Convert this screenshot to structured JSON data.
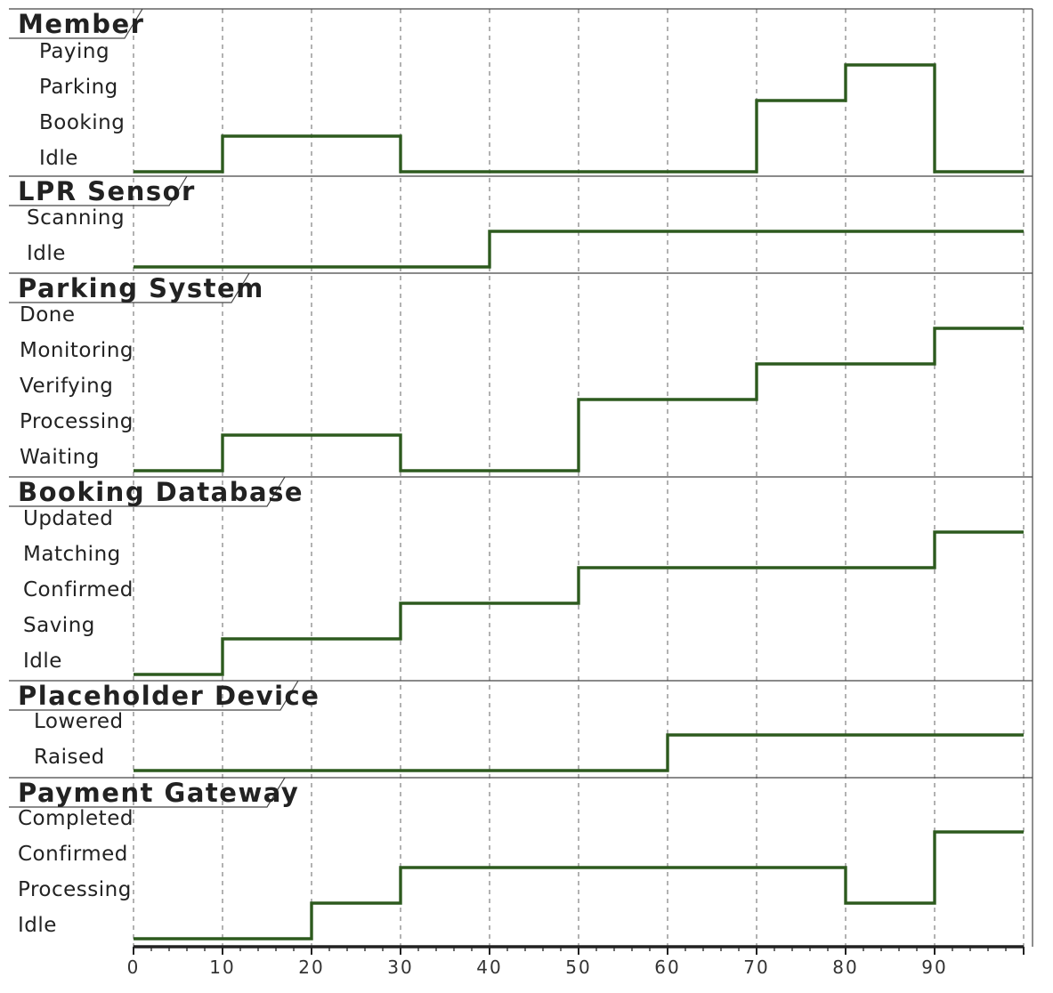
{
  "chart_data": {
    "type": "timing",
    "x_range": [
      0,
      100
    ],
    "x_ticks": [
      0,
      10,
      20,
      30,
      40,
      50,
      60,
      70,
      80,
      90
    ],
    "grid_x": [
      0,
      10,
      20,
      30,
      40,
      50,
      60,
      70,
      80,
      90,
      100
    ],
    "signal_color": "#2d5a1e",
    "lanes": [
      {
        "title": "Member",
        "states": [
          "Paying",
          "Parking",
          "Booking",
          "Idle"
        ],
        "transitions": [
          {
            "t": 0,
            "state": "Idle"
          },
          {
            "t": 10,
            "state": "Booking"
          },
          {
            "t": 30,
            "state": "Idle"
          },
          {
            "t": 70,
            "state": "Parking"
          },
          {
            "t": 80,
            "state": "Paying"
          },
          {
            "t": 90,
            "state": "Idle"
          }
        ]
      },
      {
        "title": "LPR Sensor",
        "states": [
          "Scanning",
          "Idle"
        ],
        "transitions": [
          {
            "t": 0,
            "state": "Idle"
          },
          {
            "t": 40,
            "state": "Scanning"
          }
        ]
      },
      {
        "title": "Parking System",
        "states": [
          "Done",
          "Monitoring",
          "Verifying",
          "Processing",
          "Waiting"
        ],
        "transitions": [
          {
            "t": 0,
            "state": "Waiting"
          },
          {
            "t": 10,
            "state": "Processing"
          },
          {
            "t": 30,
            "state": "Waiting"
          },
          {
            "t": 50,
            "state": "Verifying"
          },
          {
            "t": 70,
            "state": "Monitoring"
          },
          {
            "t": 90,
            "state": "Done"
          }
        ]
      },
      {
        "title": "Booking Database",
        "states": [
          "Updated",
          "Matching",
          "Confirmed",
          "Saving",
          "Idle"
        ],
        "transitions": [
          {
            "t": 0,
            "state": "Idle"
          },
          {
            "t": 10,
            "state": "Saving"
          },
          {
            "t": 30,
            "state": "Confirmed"
          },
          {
            "t": 50,
            "state": "Matching"
          },
          {
            "t": 90,
            "state": "Updated"
          }
        ]
      },
      {
        "title": "Placeholder Device",
        "states": [
          "Lowered",
          "Raised"
        ],
        "transitions": [
          {
            "t": 0,
            "state": "Raised"
          },
          {
            "t": 60,
            "state": "Lowered"
          }
        ]
      },
      {
        "title": "Payment Gateway",
        "states": [
          "Completed",
          "Confirmed",
          "Processing",
          "Idle"
        ],
        "transitions": [
          {
            "t": 0,
            "state": "Idle"
          },
          {
            "t": 20,
            "state": "Processing"
          },
          {
            "t": 30,
            "state": "Confirmed"
          },
          {
            "t": 80,
            "state": "Processing"
          },
          {
            "t": 90,
            "state": "Completed"
          }
        ]
      }
    ]
  }
}
